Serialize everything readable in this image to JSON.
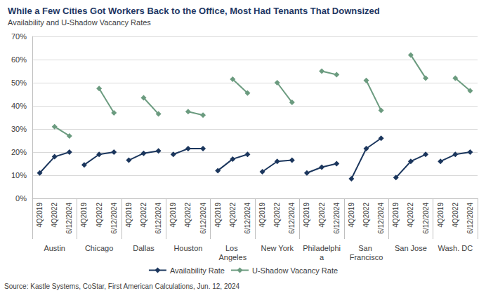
{
  "chart_data": {
    "type": "line",
    "title": "While a Few Cities Got Workers Back to the Office, Most Had Tenants That Downsized",
    "subtitle": "Availability and U-Shadow Vacancy Rates",
    "source": "Source: Kastle Systems, CoStar, First American Calculations, Jun. 12, 2024",
    "category_groups": [
      "Austin",
      "Chicago",
      "Dallas",
      "Houston",
      "Los Angeles",
      "New York",
      "Philadelphia",
      "San Francisco",
      "San Jose",
      "Wash. DC"
    ],
    "categories": [
      "4Q2019",
      "4Q2022",
      "6/12/2024",
      "4Q2019",
      "4Q2022",
      "6/12/2024",
      "4Q2019",
      "4Q2022",
      "6/12/2024",
      "4Q2019",
      "4Q2022",
      "6/12/2024",
      "4Q2019",
      "4Q2022",
      "6/12/2024",
      "4Q2019",
      "4Q2022",
      "6/12/2024",
      "4Q2019",
      "4Q2022",
      "6/12/2024",
      "4Q2019",
      "4Q2022",
      "6/12/2024",
      "4Q2019",
      "4Q2022",
      "6/12/2024",
      "4Q2019",
      "4Q2022",
      "6/12/2024"
    ],
    "series": [
      {
        "name": "Availability Rate",
        "color": "#1b365d",
        "marker": "diamond",
        "line_style": "solid",
        "values": [
          11,
          18,
          20,
          14.5,
          19,
          20,
          16.5,
          19.5,
          20.5,
          19,
          21.5,
          21.5,
          12,
          17,
          19,
          11.5,
          16,
          16.5,
          11,
          13.5,
          15,
          8.5,
          21.5,
          26,
          9,
          16,
          19,
          16,
          19,
          20
        ]
      },
      {
        "name": "U-Shadow Vacancy Rate",
        "color": "#6b9b7f",
        "marker": "diamond",
        "line_style": "solid",
        "values": [
          null,
          31,
          27,
          null,
          47.5,
          37,
          null,
          43.5,
          36.5,
          null,
          37.5,
          36,
          null,
          51.5,
          45.5,
          null,
          50,
          41.5,
          null,
          55,
          53.5,
          null,
          51,
          38,
          null,
          62,
          52,
          null,
          52,
          46.5
        ]
      }
    ],
    "ylim": [
      0,
      70
    ],
    "yticks": [
      {
        "value": 0,
        "label": "0%"
      },
      {
        "value": 10,
        "label": "10%"
      },
      {
        "value": 20,
        "label": "20%"
      },
      {
        "value": 30,
        "label": "30%"
      },
      {
        "value": 40,
        "label": "40%"
      },
      {
        "value": 50,
        "label": "50%"
      },
      {
        "value": 60,
        "label": "60%"
      },
      {
        "value": 70,
        "label": "70%"
      }
    ],
    "grid": true,
    "legend": "bottom"
  }
}
